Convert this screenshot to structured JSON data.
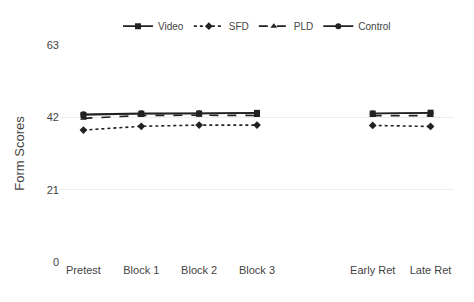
{
  "chart_data": {
    "type": "line",
    "categories": [
      "Pretest",
      "Block 1",
      "Block 2",
      "Block 3",
      null,
      "Early Ret",
      "Late Ret"
    ],
    "series": [
      {
        "name": "Video",
        "color": "#222222",
        "marker": "square",
        "line_style": "solid",
        "values": [
          42.7,
          43.05,
          43.1,
          43.3,
          null,
          43.1,
          43.35
        ]
      },
      {
        "name": "SFD",
        "color": "#222222",
        "marker": "diamond",
        "line_style": "dotted",
        "values": [
          38.3,
          39.4,
          39.75,
          39.75,
          null,
          39.65,
          39.35
        ]
      },
      {
        "name": "PLD",
        "color": "#222222",
        "marker": "triangle-up",
        "line_style": "dashed",
        "values": [
          41.7,
          42.55,
          42.6,
          42.55,
          null,
          42.5,
          42.5
        ]
      },
      {
        "name": "Control",
        "color": "#222222",
        "marker": "circle",
        "line_style": "solid",
        "values": [
          42.9,
          43.15,
          43.15,
          43.25,
          null,
          43.1,
          43.25
        ]
      }
    ],
    "ylabel": "Form Scores",
    "ylim": [
      0,
      63
    ],
    "yticks": [
      0,
      21,
      42,
      63
    ],
    "grid": true,
    "legend": "top"
  }
}
